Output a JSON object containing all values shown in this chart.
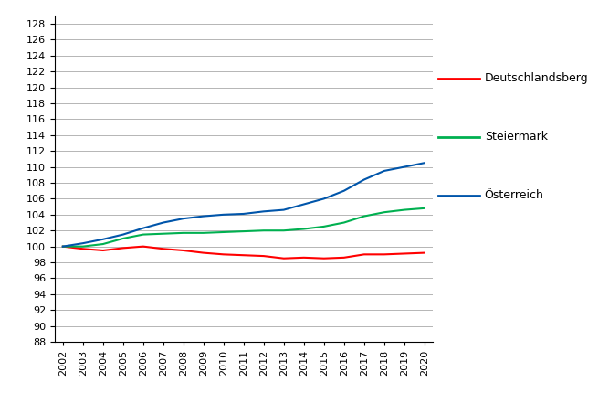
{
  "years": [
    2002,
    2003,
    2004,
    2005,
    2006,
    2007,
    2008,
    2009,
    2010,
    2011,
    2012,
    2013,
    2014,
    2015,
    2016,
    2017,
    2018,
    2019,
    2020
  ],
  "deutschlandsberg": [
    100.0,
    99.7,
    99.5,
    99.8,
    100.0,
    99.7,
    99.5,
    99.2,
    99.0,
    98.9,
    98.8,
    98.5,
    98.6,
    98.5,
    98.6,
    99.0,
    99.0,
    99.1,
    99.2
  ],
  "steiermark": [
    100.0,
    100.0,
    100.3,
    101.0,
    101.5,
    101.6,
    101.7,
    101.7,
    101.8,
    101.9,
    102.0,
    102.0,
    102.2,
    102.5,
    103.0,
    103.8,
    104.3,
    104.6,
    104.8
  ],
  "oesterreich": [
    100.0,
    100.4,
    100.9,
    101.5,
    102.3,
    103.0,
    103.5,
    103.8,
    104.0,
    104.1,
    104.4,
    104.6,
    105.3,
    106.0,
    107.0,
    108.4,
    109.5,
    110.0,
    110.5
  ],
  "series_colors": [
    "#ff0000",
    "#00b050",
    "#0055aa"
  ],
  "series_labels": [
    "Deutschlandsberg",
    "Steiermark",
    "Österreich"
  ],
  "ylim": [
    88,
    129
  ],
  "ytick_min": 88,
  "ytick_max": 128,
  "ytick_step": 2,
  "xlim_min": 2001.6,
  "xlim_max": 2020.4,
  "background_color": "#ffffff",
  "line_width": 1.5,
  "grid_color": "#aaaaaa",
  "grid_lw": 0.6,
  "legend_fontsize": 9,
  "tick_fontsize": 8
}
